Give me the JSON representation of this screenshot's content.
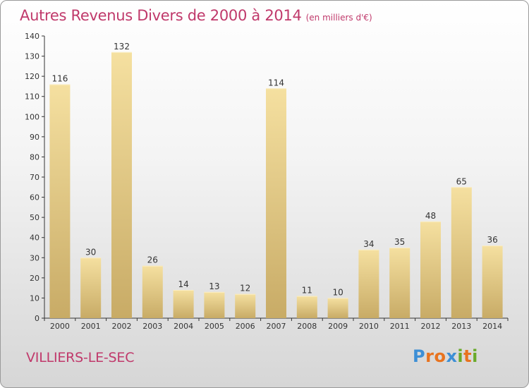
{
  "chart_data": {
    "type": "bar",
    "title": "Autres Revenus Divers de 2000 à 2014",
    "unit_note": "(en milliers d'€)",
    "categories": [
      "2000",
      "2001",
      "2002",
      "2003",
      "2004",
      "2005",
      "2006",
      "2007",
      "2008",
      "2009",
      "2010",
      "2011",
      "2012",
      "2013",
      "2014"
    ],
    "values": [
      116,
      30,
      132,
      26,
      14,
      13,
      12,
      114,
      11,
      10,
      34,
      35,
      48,
      65,
      36
    ],
    "ylim": [
      0,
      140
    ],
    "yticks": [
      0,
      10,
      20,
      30,
      40,
      50,
      60,
      70,
      80,
      90,
      100,
      110,
      120,
      130,
      140
    ],
    "grid": false,
    "bar_color_top": "#f5e0a0",
    "bar_color_bottom": "#c8ab66"
  },
  "footer": {
    "commune": "VILLIERS-LE-SEC"
  },
  "logo": {
    "letters": [
      "P",
      "r",
      "o",
      "x",
      "i",
      "t",
      "i"
    ],
    "colors": [
      "#3d8fd6",
      "#e8731f",
      "#e8731f",
      "#3d8fd6",
      "#6aaa2a",
      "#e8731f",
      "#6aaa2a"
    ]
  },
  "colors": {
    "title": "#c0396b",
    "axis": "#333333"
  }
}
